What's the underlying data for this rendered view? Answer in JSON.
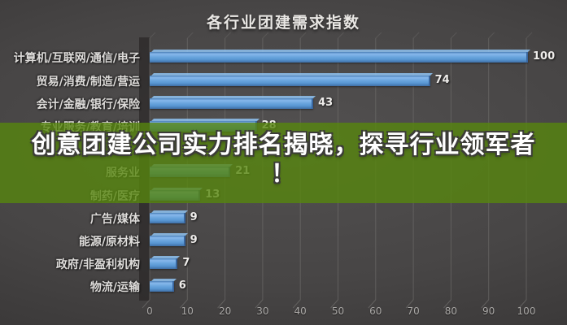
{
  "chart_data": {
    "type": "bar",
    "orientation": "horizontal",
    "title": "各行业团建需求指数",
    "categories": [
      "计算机/互联网/通信/电子",
      "贸易/消费/制造/营运",
      "会计/金融/银行/保险",
      "专业服务/教育/培训",
      "",
      "服务业",
      "制药/医疗",
      "广告/媒体",
      "能源/原材料",
      "政府/非盈利机构",
      "物流/运输"
    ],
    "values": [
      100,
      74,
      43,
      28,
      null,
      21,
      13,
      9,
      9,
      7,
      6
    ],
    "xlabel": "",
    "ylabel": "",
    "xlim": [
      0,
      100
    ],
    "x_ticks": [
      0,
      10,
      20,
      30,
      40,
      50,
      60,
      70,
      80,
      90,
      100
    ],
    "grid": true,
    "legend": false,
    "value_labels_shown": true,
    "bar_color": "#5b9bd5"
  },
  "banner": {
    "line1": "创意团建公司实力排名揭晓，探寻行业领军者",
    "line2": "！",
    "background": "#568610",
    "opacity": 0.8,
    "text_color": "#ffffff"
  },
  "colors": {
    "background": "#474545",
    "grid_line": "#767472",
    "wall_shadow": "#262424",
    "title_text": "#e9e7e4",
    "category_text": "#dedcda",
    "value_text": "#efedeb",
    "axis_text": "#aaa8a6"
  }
}
